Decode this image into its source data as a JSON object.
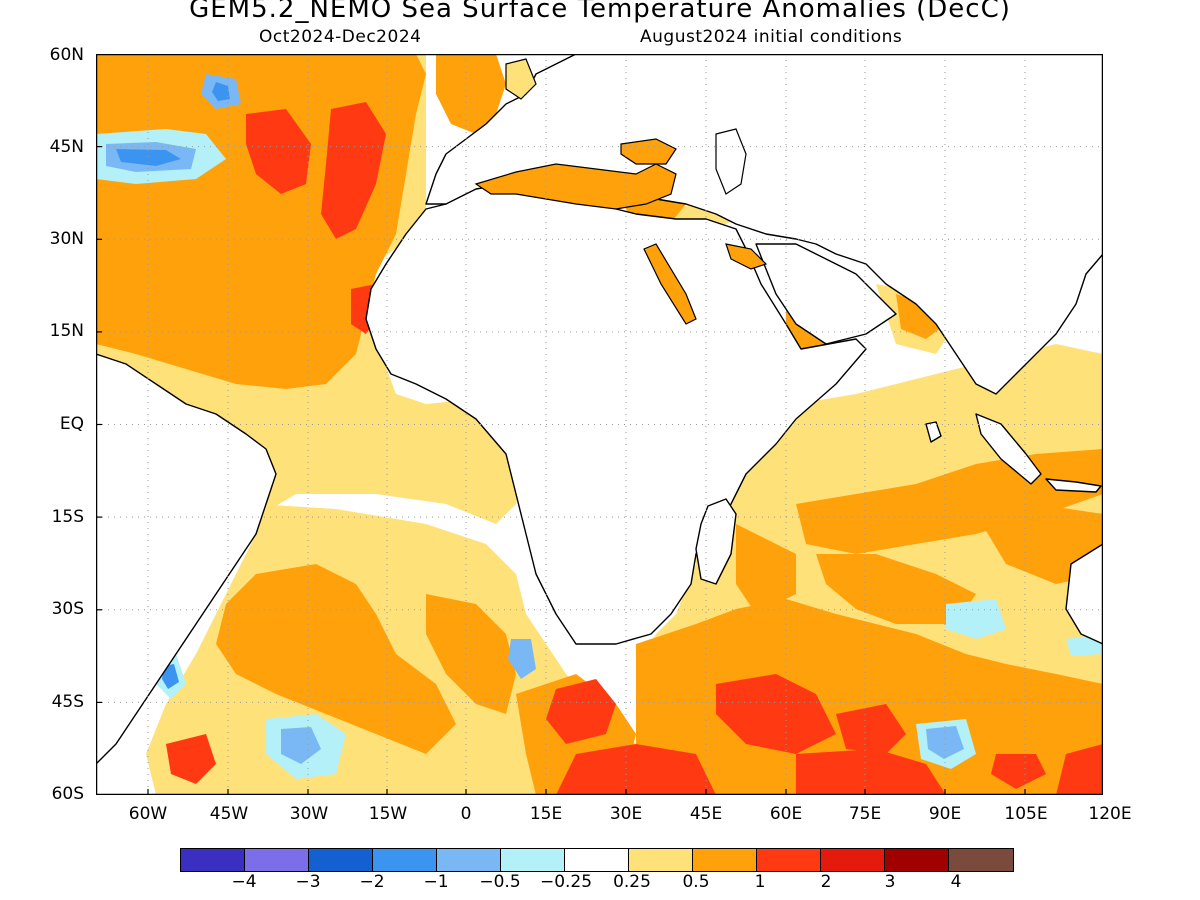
{
  "header": {
    "title": "GEM5.2_NEMO Sea Surface Temperature Anomalies (DecC)",
    "period": "Oct2024-Dec2024",
    "init": "August2024 initial conditions"
  },
  "axes": {
    "lat_labels": [
      "60N",
      "45N",
      "30N",
      "15N",
      "EQ",
      "15S",
      "30S",
      "45S",
      "60S"
    ],
    "lon_labels": [
      "60W",
      "45W",
      "30W",
      "15W",
      "0",
      "15E",
      "30E",
      "45E",
      "60E",
      "75E",
      "90E",
      "105E",
      "120E"
    ]
  },
  "legend": {
    "colors": [
      "#3a2fc0",
      "#7b6ee8",
      "#1560d0",
      "#3b95f0",
      "#7ab8f5",
      "#b3f0f7",
      "#ffffff",
      "#ffe17a",
      "#ffa10a",
      "#ff3a12",
      "#e31a0c",
      "#a00000",
      "#7a4a3c"
    ],
    "labels": [
      "−4",
      "−3",
      "−2",
      "−1",
      "−0.5",
      "−0.25",
      "0.25",
      "0.5",
      "1",
      "2",
      "3",
      "4"
    ]
  },
  "palette": {
    "land_outline": "#000000",
    "grid": "#9a9a9a",
    "warm1": "#ffe17a",
    "warm2": "#ffa10a",
    "warm3": "#ff3a12",
    "cool1": "#b3f0f7",
    "cool2": "#7ab8f5",
    "cool3": "#3b95f0",
    "cool4": "#1560d0",
    "cool5": "#7b6ee8"
  }
}
